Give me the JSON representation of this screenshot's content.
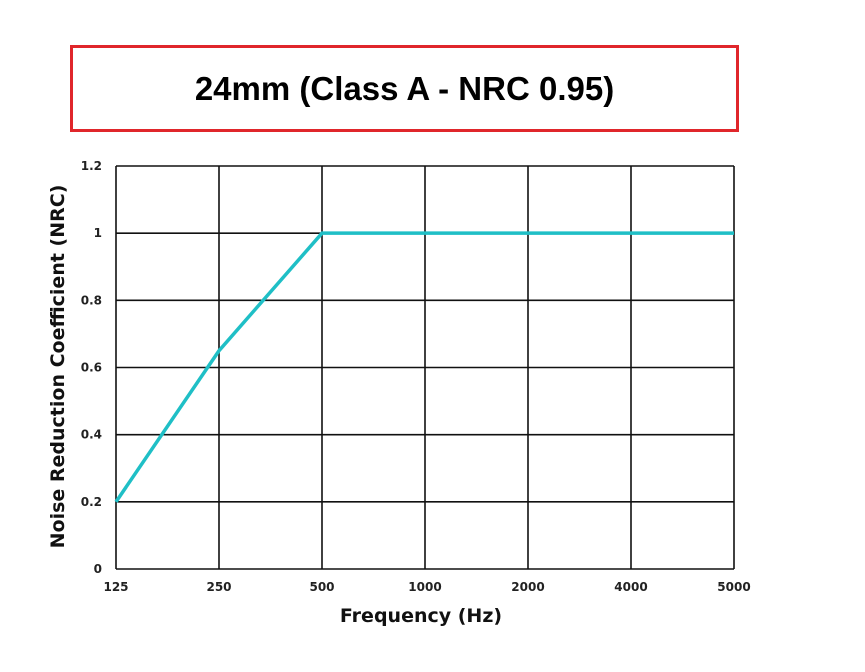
{
  "title": "24mm (Class A - NRC 0.95)",
  "colors": {
    "title_border": "#e0262b",
    "series_line": "#1fbfc6",
    "grid": "#111111"
  },
  "chart_data": {
    "type": "line",
    "title": "24mm (Class A - NRC 0.95)",
    "xlabel": "Frequency (Hz)",
    "ylabel": "Noise Reduction Coefficient (NRC)",
    "categories": [
      "125",
      "250",
      "500",
      "1000",
      "2000",
      "4000",
      "5000"
    ],
    "series": [
      {
        "name": "",
        "values": [
          0.2,
          0.65,
          1.0,
          1.0,
          1.0,
          1.0,
          1.0
        ]
      }
    ],
    "ylim": [
      0,
      1.2
    ],
    "yticks": [
      "0",
      "0.2",
      "0.4",
      "0.6",
      "0.8",
      "1",
      "1.2"
    ],
    "grid": true,
    "legend": "none"
  }
}
